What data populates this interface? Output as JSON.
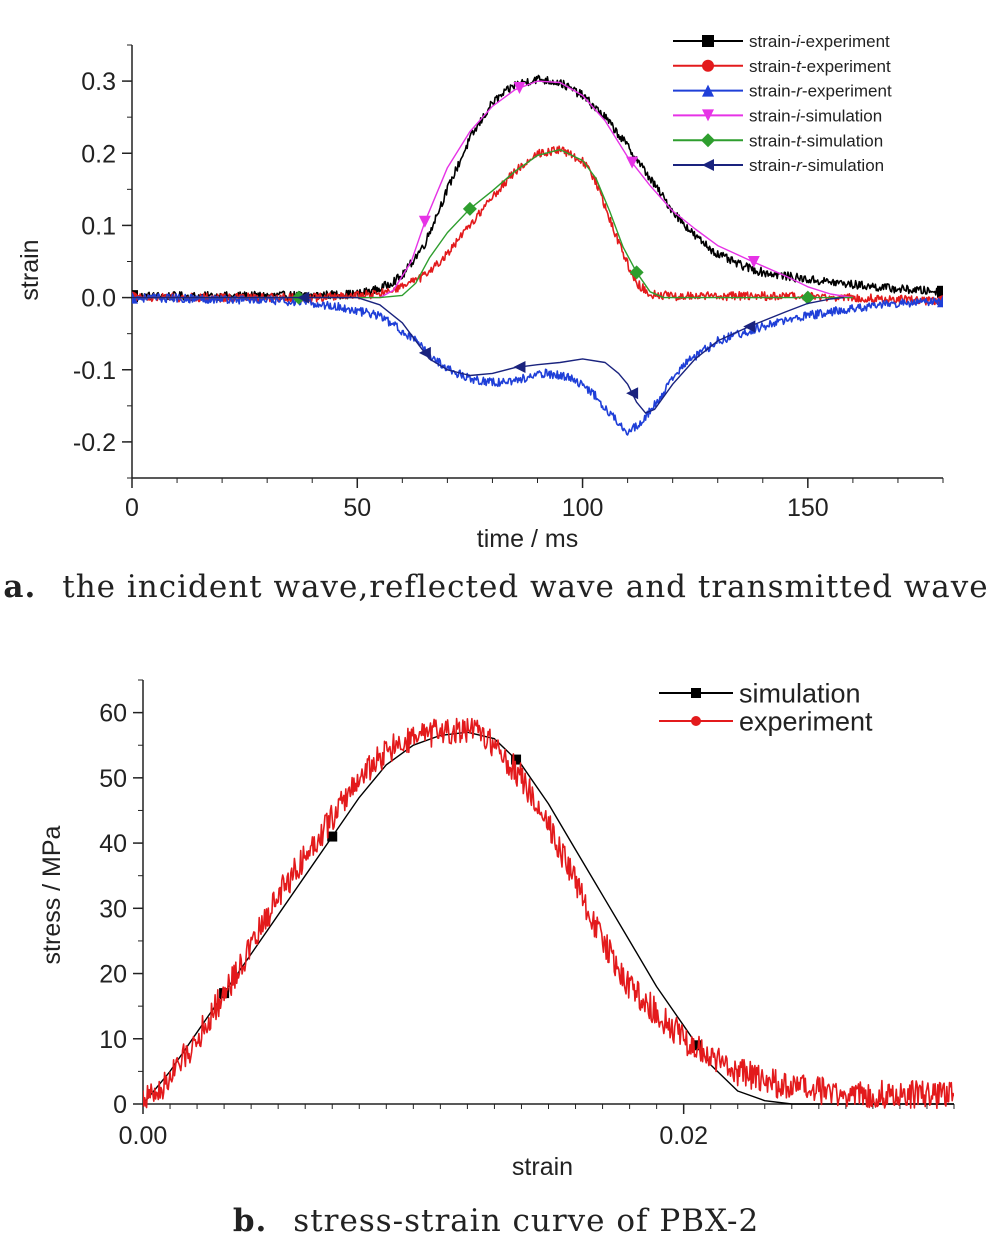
{
  "captions": {
    "a_label": "a.",
    "a_text": "the incident wave,reflected wave and transmitted wave",
    "b_label": "b.",
    "b_text": "stress-strain curve of PBX-2"
  },
  "chart_data": [
    {
      "id": "a",
      "type": "line",
      "xlabel": "time / ms",
      "ylabel": "strain",
      "xlim": [
        0,
        180
      ],
      "ylim": [
        -0.25,
        0.35
      ],
      "x_ticks": [
        0,
        50,
        100,
        150
      ],
      "x_tick_labels": [
        "0",
        "50",
        "100",
        "150"
      ],
      "y_ticks": [
        0.3,
        0.2,
        0.1,
        0.0,
        -0.1,
        -0.2
      ],
      "y_tick_labels": [
        "0.3",
        "0.2",
        "0.1",
        "0.0",
        "-0.1",
        "-0.2"
      ],
      "grid": false,
      "legend_position": "top-right",
      "series": [
        {
          "name": "strain-i-experiment",
          "name_prefix": "strain-",
          "name_italic": "i",
          "name_suffix": "-experiment",
          "color": "#000000",
          "marker": "square",
          "noisy": true,
          "x": [
            0,
            20,
            40,
            50,
            55,
            60,
            65,
            70,
            75,
            80,
            85,
            90,
            95,
            100,
            105,
            110,
            115,
            120,
            125,
            130,
            135,
            140,
            150,
            160,
            170,
            180
          ],
          "y": [
            0.002,
            0.002,
            0.003,
            0.005,
            0.012,
            0.03,
            0.075,
            0.15,
            0.22,
            0.27,
            0.295,
            0.303,
            0.298,
            0.28,
            0.25,
            0.21,
            0.165,
            0.12,
            0.085,
            0.06,
            0.045,
            0.035,
            0.025,
            0.018,
            0.012,
            0.008
          ],
          "marker_x": [
            0,
            180
          ]
        },
        {
          "name": "strain-t-experiment",
          "name_prefix": "strain-",
          "name_italic": "t",
          "name_suffix": "-experiment",
          "color": "#e31a1c",
          "marker": "circle",
          "noisy": true,
          "x": [
            0,
            40,
            55,
            60,
            65,
            70,
            75,
            80,
            85,
            90,
            95,
            100,
            103,
            106,
            109,
            112,
            115,
            120,
            140,
            160,
            180
          ],
          "y": [
            0.0,
            0.0,
            0.005,
            0.015,
            0.03,
            0.06,
            0.1,
            0.14,
            0.175,
            0.2,
            0.205,
            0.19,
            0.16,
            0.11,
            0.06,
            0.02,
            0.005,
            0.002,
            0.002,
            0.0,
            -0.005
          ],
          "marker_x": [
            0,
            180
          ]
        },
        {
          "name": "strain-r-experiment",
          "name_prefix": "strain-",
          "name_italic": "r",
          "name_suffix": "-experiment",
          "color": "#1f3fd8",
          "marker": "triangle-up",
          "noisy": true,
          "x": [
            0,
            20,
            35,
            45,
            55,
            62,
            67,
            72,
            77,
            82,
            87,
            92,
            97,
            102,
            106,
            110,
            113,
            117,
            122,
            130,
            140,
            150,
            160,
            170,
            180
          ],
          "y": [
            0.0,
            -0.002,
            -0.005,
            -0.012,
            -0.025,
            -0.055,
            -0.085,
            -0.105,
            -0.115,
            -0.118,
            -0.112,
            -0.105,
            -0.11,
            -0.13,
            -0.16,
            -0.185,
            -0.175,
            -0.14,
            -0.095,
            -0.06,
            -0.04,
            -0.025,
            -0.015,
            -0.008,
            -0.005
          ],
          "marker_x": [
            0,
            180
          ]
        },
        {
          "name": "strain-i-simulation",
          "name_prefix": "strain-",
          "name_italic": "i",
          "name_suffix": "-simulation",
          "color": "#e633e6",
          "marker": "triangle-down",
          "noisy": false,
          "x": [
            0,
            55,
            58,
            62,
            65,
            70,
            75,
            80,
            85,
            90,
            95,
            100,
            105,
            110,
            115,
            120,
            125,
            130,
            137,
            145,
            150,
            155,
            160
          ],
          "y": [
            0.0,
            0.0,
            0.01,
            0.05,
            0.105,
            0.18,
            0.23,
            0.265,
            0.288,
            0.3,
            0.298,
            0.28,
            0.245,
            0.195,
            0.155,
            0.12,
            0.095,
            0.072,
            0.052,
            0.03,
            0.015,
            0.005,
            0.0
          ],
          "marker_x": [
            65,
            86,
            111,
            138
          ]
        },
        {
          "name": "strain-t-simulation",
          "name_prefix": "strain-",
          "name_italic": "t",
          "name_suffix": "-simulation",
          "color": "#2e9e2e",
          "marker": "diamond",
          "noisy": false,
          "x": [
            0,
            55,
            60,
            63,
            66,
            70,
            75,
            80,
            85,
            90,
            95,
            100,
            103,
            106,
            109,
            112,
            115,
            118,
            125,
            150,
            160
          ],
          "y": [
            0.0,
            0.0,
            0.003,
            0.02,
            0.055,
            0.09,
            0.123,
            0.148,
            0.175,
            0.197,
            0.205,
            0.19,
            0.165,
            0.12,
            0.07,
            0.035,
            0.008,
            0.0,
            0.0,
            0.0,
            0.0
          ],
          "marker_x": [
            37,
            75,
            112,
            150
          ]
        },
        {
          "name": "strain-r-simulation",
          "name_prefix": "strain-",
          "name_italic": "r",
          "name_suffix": "-simulation",
          "color": "#1a237e",
          "marker": "triangle-left",
          "noisy": false,
          "x": [
            0,
            50,
            55,
            60,
            63,
            66,
            70,
            75,
            80,
            85,
            90,
            95,
            100,
            105,
            108,
            110,
            112,
            114,
            116,
            120,
            125,
            130,
            137,
            145,
            150,
            155,
            158
          ],
          "y": [
            0.0,
            0.0,
            -0.01,
            -0.035,
            -0.06,
            -0.085,
            -0.1,
            -0.108,
            -0.105,
            -0.097,
            -0.093,
            -0.09,
            -0.085,
            -0.09,
            -0.105,
            -0.12,
            -0.145,
            -0.16,
            -0.155,
            -0.12,
            -0.085,
            -0.06,
            -0.04,
            -0.02,
            -0.008,
            -0.002,
            0.0
          ],
          "marker_x": [
            38,
            65,
            86,
            111,
            137
          ]
        }
      ]
    },
    {
      "id": "b",
      "type": "line",
      "xlabel": "strain",
      "ylabel": "stress / MPa",
      "xlim": [
        0,
        0.03
      ],
      "ylim": [
        0,
        65
      ],
      "x_ticks": [
        0,
        0.02
      ],
      "x_tick_labels": [
        "0.00",
        "0.02"
      ],
      "y_ticks": [
        0,
        10,
        20,
        30,
        40,
        50,
        60
      ],
      "y_tick_labels": [
        "0",
        "10",
        "20",
        "30",
        "40",
        "50",
        "60"
      ],
      "grid": false,
      "legend_position": "top-right",
      "series": [
        {
          "name": "simulation",
          "color": "#000000",
          "marker": "square",
          "noisy": false,
          "x": [
            0.0,
            0.001,
            0.002,
            0.003,
            0.004,
            0.005,
            0.006,
            0.007,
            0.008,
            0.009,
            0.01,
            0.011,
            0.012,
            0.013,
            0.014,
            0.015,
            0.016,
            0.017,
            0.018,
            0.019,
            0.02,
            0.021,
            0.022,
            0.023,
            0.024,
            0.025,
            0.03
          ],
          "y": [
            0,
            5,
            11,
            17,
            23,
            29,
            35,
            41,
            47,
            52,
            55,
            56.5,
            57,
            56,
            52,
            46,
            39,
            32,
            25,
            18,
            12,
            6,
            2,
            0.5,
            0,
            0,
            0
          ],
          "marker_x": [
            0.003,
            0.007,
            0.0138,
            0.0205
          ]
        },
        {
          "name": "experiment",
          "color": "#e31a1c",
          "marker": "circle",
          "noisy": true,
          "x": [
            0.0,
            0.0005,
            0.001,
            0.002,
            0.003,
            0.004,
            0.005,
            0.006,
            0.007,
            0.008,
            0.009,
            0.01,
            0.011,
            0.012,
            0.0125,
            0.013,
            0.014,
            0.015,
            0.016,
            0.017,
            0.018,
            0.019,
            0.02,
            0.021,
            0.022,
            0.023,
            0.024,
            0.025,
            0.026,
            0.027,
            0.028,
            0.03
          ],
          "y": [
            1,
            1.5,
            4,
            10,
            17,
            24,
            32,
            38,
            44,
            50,
            54,
            56,
            57,
            57,
            57,
            55,
            50,
            43,
            34,
            25,
            18,
            14,
            10,
            7,
            5,
            3.5,
            2.5,
            2,
            1.5,
            1.5,
            1.5,
            1.5
          ],
          "marker_x": []
        }
      ]
    }
  ]
}
